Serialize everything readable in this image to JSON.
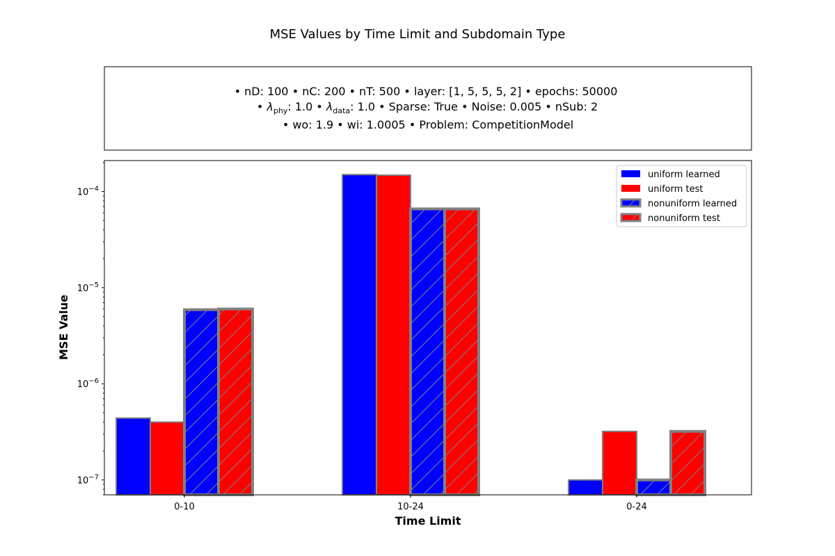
{
  "chart_data": {
    "type": "bar",
    "title": "MSE Values by Time Limit and Subdomain Type",
    "xlabel": "Time Limit",
    "ylabel": "MSE Value",
    "yscale": "log",
    "ylim": [
      7e-08,
      0.00021
    ],
    "y_tick_labels": [
      {
        "value": 1e-07,
        "label": "10",
        "exp": "−7"
      },
      {
        "value": 1e-06,
        "label": "10",
        "exp": "−6"
      },
      {
        "value": 1e-05,
        "label": "10",
        "exp": "−5"
      },
      {
        "value": 0.0001,
        "label": "10",
        "exp": "−4"
      }
    ],
    "categories": [
      "0-10",
      "10-24",
      "0-24"
    ],
    "series": [
      {
        "name": "uniform learned",
        "values": [
          4.4e-07,
          0.00015,
          1e-07
        ],
        "color": "#0000ff",
        "hatch": false
      },
      {
        "name": "uniform test",
        "values": [
          4e-07,
          0.000148,
          3.2e-07
        ],
        "color": "#ff0000",
        "hatch": false
      },
      {
        "name": "nonuniform learned",
        "values": [
          5.9e-06,
          6.6e-05,
          1e-07
        ],
        "color": "#0000ff",
        "hatch": true
      },
      {
        "name": "nonuniform test",
        "values": [
          6e-06,
          6.6e-05,
          3.2e-07
        ],
        "color": "#ff0000",
        "hatch": true
      }
    ],
    "legend_position": "top-right",
    "grid": false,
    "info_box": {
      "line1": "• nD: 100 • nC: 200 • nT: 500 • layer: [1, 5, 5, 5, 2] • epochs: 50000",
      "line2_pre": "• ",
      "lambda": "λ",
      "phy": "phy",
      "phy_val": ": 1.0 • ",
      "data": "data",
      "data_val": ": 1.0 • Sparse: True • Noise: 0.005 • nSub: 2",
      "line3": "• wo: 1.9 • wi: 1.0005 • Problem: CompetitionModel"
    }
  }
}
